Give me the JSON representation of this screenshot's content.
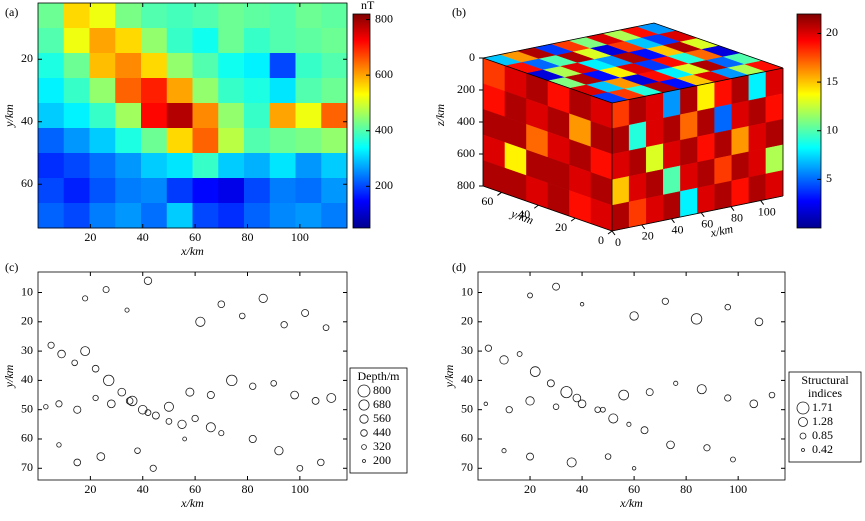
{
  "chart_data": [
    {
      "type": "heatmap",
      "label": "(a)",
      "xlabel": "x/km",
      "ylabel": "y/km",
      "xlim": [
        0,
        118
      ],
      "ylim": [
        74,
        2
      ],
      "xticks": [
        20,
        40,
        60,
        80,
        100
      ],
      "yticks": [
        20,
        40,
        60
      ],
      "colormap": "jet",
      "z": [
        [
          420,
          560,
          520,
          430,
          400,
          390,
          400,
          420,
          410,
          400,
          420,
          410
        ],
        [
          400,
          520,
          600,
          560,
          450,
          380,
          350,
          420,
          380,
          400,
          410,
          420
        ],
        [
          360,
          420,
          580,
          620,
          560,
          450,
          400,
          350,
          330,
          200,
          380,
          400
        ],
        [
          330,
          380,
          450,
          650,
          700,
          600,
          450,
          380,
          360,
          320,
          400,
          420
        ],
        [
          300,
          330,
          380,
          460,
          720,
          780,
          620,
          450,
          380,
          600,
          520,
          650
        ],
        [
          220,
          260,
          300,
          360,
          420,
          560,
          650,
          480,
          400,
          420,
          430,
          450
        ],
        [
          180,
          200,
          230,
          260,
          300,
          320,
          380,
          300,
          280,
          320,
          260,
          300
        ],
        [
          200,
          170,
          210,
          240,
          250,
          190,
          150,
          130,
          200,
          240,
          230,
          260
        ],
        [
          220,
          200,
          240,
          260,
          230,
          300,
          200,
          180,
          220,
          250,
          260,
          240
        ]
      ],
      "colorbar": {
        "title": "nT",
        "lim": [
          50,
          820
        ],
        "ticks": [
          200,
          400,
          600,
          800
        ]
      }
    },
    {
      "type": "cube",
      "label": "(b)",
      "xlabel": "x/km",
      "ylabel": "y/km",
      "zlabel": "z/km",
      "xlim": [
        0,
        115
      ],
      "ylim": [
        0,
        70
      ],
      "zlim": [
        0,
        800
      ],
      "xticks": [
        0,
        20,
        40,
        60,
        80,
        100
      ],
      "yticks": [
        0,
        20,
        40,
        60
      ],
      "zticks": [
        0,
        200,
        400,
        600,
        800
      ],
      "colormap": "jet",
      "top": [
        [
          4,
          18,
          9,
          21,
          3,
          15,
          20,
          6,
          12,
          19
        ],
        [
          20,
          7,
          16,
          2,
          19,
          8,
          13,
          21,
          5,
          10
        ],
        [
          11,
          21,
          3,
          14,
          20,
          4,
          19,
          9,
          17,
          2
        ],
        [
          2,
          12,
          20,
          8,
          6,
          21,
          3,
          15,
          21,
          13
        ],
        [
          19,
          5,
          10,
          21,
          13,
          2,
          18,
          7,
          4,
          20
        ],
        [
          7,
          16,
          21,
          4,
          18,
          11,
          20,
          12,
          19,
          6
        ]
      ],
      "front": [
        [
          18,
          21,
          20,
          6,
          21,
          14,
          19,
          21,
          8,
          20
        ],
        [
          21,
          9,
          20,
          21,
          17,
          21,
          5,
          20,
          21,
          19
        ],
        [
          20,
          21,
          13,
          20,
          21,
          19,
          21,
          16,
          20,
          21
        ],
        [
          15,
          20,
          21,
          10,
          20,
          21,
          18,
          21,
          20,
          12
        ],
        [
          21,
          18,
          20,
          21,
          8,
          20,
          21,
          19,
          21,
          20
        ]
      ],
      "side": [
        [
          20,
          21,
          19,
          21,
          20,
          18
        ],
        [
          21,
          16,
          21,
          20,
          21,
          19
        ],
        [
          19,
          21,
          20,
          17,
          21,
          21
        ],
        [
          21,
          20,
          21,
          21,
          14,
          20
        ],
        [
          20,
          19,
          21,
          20,
          21,
          21
        ]
      ],
      "colorbar": {
        "lim": [
          0,
          22
        ],
        "ticks": [
          5,
          10,
          15,
          20
        ]
      }
    },
    {
      "type": "scatter",
      "label": "(c)",
      "xlabel": "x/km",
      "ylabel": "y/km",
      "xlim": [
        0,
        118
      ],
      "ylim": [
        74,
        3
      ],
      "xticks": [
        20,
        40,
        60,
        80,
        100
      ],
      "yticks": [
        10,
        20,
        30,
        40,
        50,
        60,
        70
      ],
      "x": [
        5,
        9,
        14,
        18,
        22,
        27,
        32,
        36,
        40,
        45,
        50,
        55,
        60,
        66,
        70,
        3,
        8,
        15,
        22,
        28,
        35,
        42,
        50,
        58,
        66,
        74,
        82,
        90,
        98,
        106,
        112,
        18,
        26,
        34,
        42,
        62,
        70,
        78,
        86,
        94,
        102,
        110,
        8,
        15,
        24,
        38,
        44,
        56,
        82,
        92,
        100,
        108
      ],
      "y": [
        28,
        31,
        34,
        30,
        36,
        40,
        44,
        47,
        50,
        52,
        54,
        55,
        53,
        56,
        58,
        49,
        48,
        50,
        46,
        48,
        47,
        51,
        49,
        44,
        45,
        40,
        42,
        41,
        45,
        47,
        46,
        12,
        9,
        16,
        6,
        20,
        14,
        18,
        12,
        21,
        17,
        22,
        62,
        68,
        66,
        64,
        70,
        60,
        60,
        64,
        70,
        68
      ],
      "size": [
        420,
        510,
        380,
        600,
        450,
        700,
        520,
        640,
        580,
        470,
        390,
        560,
        430,
        610,
        350,
        300,
        420,
        480,
        360,
        520,
        450,
        390,
        610,
        540,
        480,
        700,
        430,
        380,
        520,
        460,
        600,
        350,
        410,
        280,
        500,
        620,
        450,
        380,
        560,
        430,
        470,
        390,
        300,
        450,
        520,
        380,
        420,
        260,
        480,
        560,
        390,
        440
      ],
      "legend": {
        "title": [
          "Depth/m"
        ],
        "values": [
          800,
          680,
          560,
          440,
          320,
          200
        ]
      }
    },
    {
      "type": "scatter",
      "label": "(d)",
      "xlabel": "x/km",
      "ylabel": "y/km",
      "xlim": [
        0,
        118
      ],
      "ylim": [
        74,
        3
      ],
      "xticks": [
        20,
        40,
        60,
        80,
        100
      ],
      "yticks": [
        10,
        20,
        30,
        40,
        50,
        60,
        70
      ],
      "x": [
        4,
        10,
        16,
        22,
        28,
        34,
        40,
        46,
        52,
        58,
        64,
        3,
        12,
        20,
        30,
        38,
        48,
        56,
        66,
        76,
        86,
        96,
        106,
        113,
        20,
        30,
        40,
        60,
        72,
        84,
        96,
        108,
        10,
        20,
        36,
        50,
        60,
        74,
        88,
        98
      ],
      "y": [
        29,
        33,
        31,
        37,
        41,
        44,
        48,
        50,
        53,
        55,
        57,
        48,
        50,
        47,
        49,
        46,
        50,
        45,
        44,
        41,
        43,
        46,
        48,
        45,
        11,
        8,
        14,
        18,
        13,
        19,
        15,
        20,
        64,
        66,
        68,
        66,
        70,
        62,
        63,
        67
      ],
      "size": [
        0.9,
        1.2,
        0.7,
        1.4,
        1.0,
        1.6,
        1.1,
        0.8,
        1.3,
        0.6,
        1.0,
        0.5,
        0.9,
        1.2,
        0.8,
        1.1,
        0.7,
        1.4,
        1.0,
        0.6,
        1.3,
        0.9,
        1.1,
        0.8,
        0.7,
        1.0,
        0.5,
        1.2,
        0.9,
        1.5,
        0.8,
        1.1,
        0.6,
        1.0,
        1.3,
        0.8,
        0.5,
        1.1,
        0.9,
        0.7
      ],
      "legend": {
        "title": [
          "Structural",
          "indices"
        ],
        "values": [
          1.71,
          1.28,
          0.85,
          0.42
        ]
      }
    }
  ]
}
